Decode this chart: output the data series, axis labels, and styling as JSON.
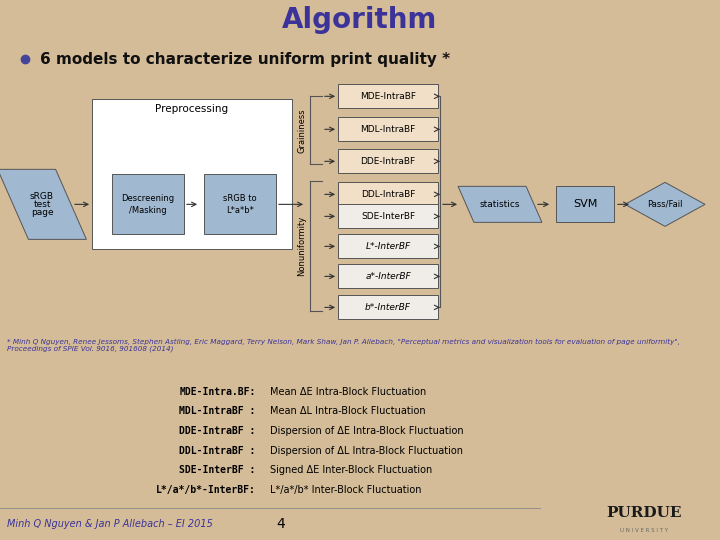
{
  "title": "Algorithm",
  "title_color": "#3b3399",
  "title_bg": "#c8b090",
  "content_bg": "#d4bc98",
  "white_area_bg": "#e8ddd0",
  "bullet_text": "6 models to characterize uniform print quality *",
  "footnote_text": "* Minh Q Nguyen, Renee Jessoms, Stephen Astling, Eric Maggard, Terry Nelson, Mark Shaw, Jan P. Allebach, \"Perceptual metrics and visualization tools for evaluation of page uniformity\", Proceedings of SPIE Vol. 9016, 901608 (2014)",
  "footnote_color": "#3b3399",
  "bottom_left_text": "Minh Q Nguyen & Jan P Allebach – EI 2015",
  "bottom_left_color": "#3b3399",
  "bottom_center_text": "4",
  "abbrev_left_col": [
    "MDE-Intra.BF:",
    "MDL-IntraBF :",
    "DDE-IntraBF :",
    "DDL-IntraBF :",
    "SDE-InterBF :",
    "L*/a*/b*-InterBF:"
  ],
  "abbrev_right_col": [
    "Mean ΔE Intra-Block Fluctuation",
    "Mean ΔL Intra-Block Fluctuation",
    "Dispersion of ΔE Intra-Block Fluctuation",
    "Dispersion of ΔL Intra-Block Fluctuation",
    "Signed ΔE Inter-Block Fluctuation",
    "L*/a*/b* Inter-Block Fluctuation"
  ],
  "intra_boxes": [
    "MDE-IntraBF",
    "MDL-IntraBF",
    "DDE-IntraBF",
    "DDL-IntraBF"
  ],
  "inter_boxes": [
    "SDE-InterBF",
    "L*-InterBF",
    "a*-InterBF",
    "b*-InterBF"
  ],
  "intra_box_color": "#f2dfc8",
  "inter_box_color": "#f0ece8",
  "process_box_color": "#a0b8d0",
  "parallelogram_color": "#a0b8d0",
  "preprocessing_box_color": "#ffffff",
  "diamond_color": "#a0b8d0"
}
